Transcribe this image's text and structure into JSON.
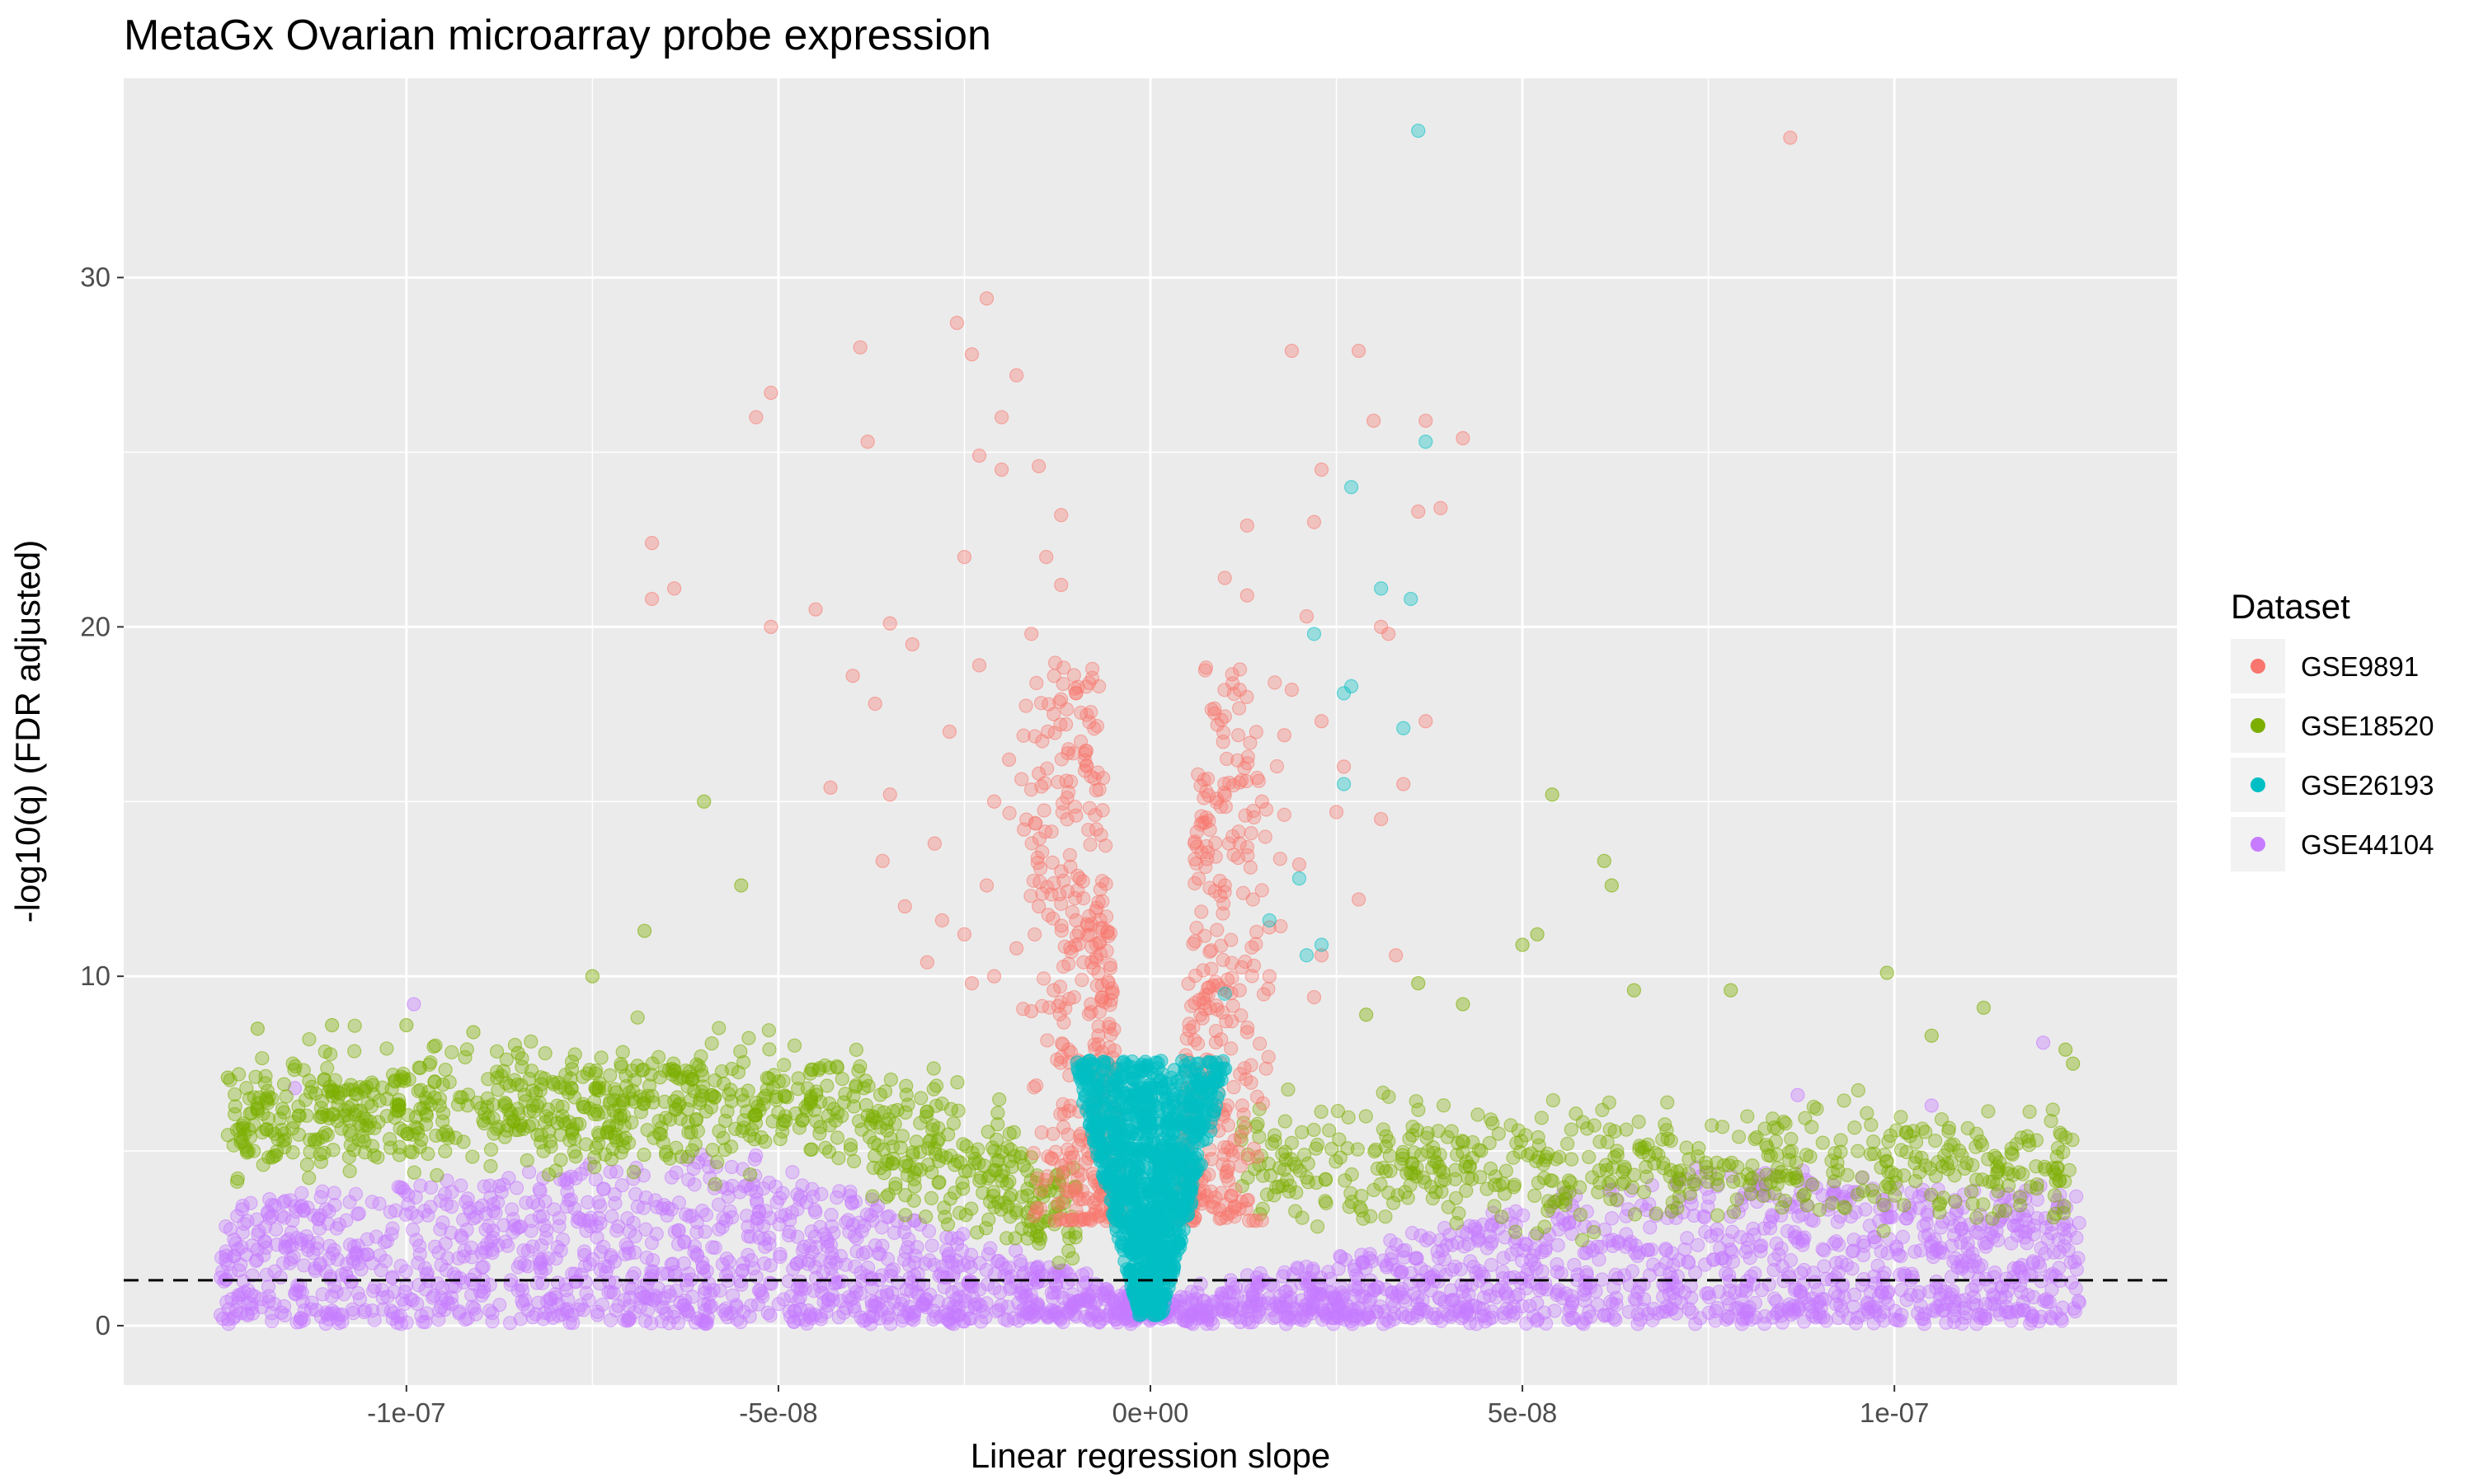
{
  "chart_data": {
    "type": "scatter",
    "title": "MetaGx Ovarian microarray probe expression",
    "xlabel": "Linear regression slope",
    "ylabel": "-log10(q) (FDR adjusted)",
    "xlim": [
      -1.38e-07,
      1.38e-07
    ],
    "ylim": [
      -1.7,
      35.7
    ],
    "x_ticks": [
      {
        "value": -1e-07,
        "label": "-1e-07"
      },
      {
        "value": -5e-08,
        "label": "-5e-08"
      },
      {
        "value": 0,
        "label": "0e+00"
      },
      {
        "value": 5e-08,
        "label": "5e-08"
      },
      {
        "value": 1e-07,
        "label": "1e-07"
      }
    ],
    "y_ticks": [
      {
        "value": 0,
        "label": "0"
      },
      {
        "value": 10,
        "label": "10"
      },
      {
        "value": 20,
        "label": "20"
      },
      {
        "value": 30,
        "label": "30"
      }
    ],
    "grid": true,
    "threshold_line": {
      "y": 1.3,
      "style": "dashed",
      "color": "#000000"
    },
    "legend": {
      "title": "Dataset",
      "position": "right"
    },
    "series": [
      {
        "name": "GSE9891",
        "color": "#F8766D",
        "points": [
          [
            8.6e-08,
            34.0
          ],
          [
            -2.2e-08,
            29.4
          ],
          [
            -2.6e-08,
            28.7
          ],
          [
            -3.9e-08,
            28.0
          ],
          [
            -2.4e-08,
            27.8
          ],
          [
            -1.8e-08,
            27.2
          ],
          [
            -5.1e-08,
            26.7
          ],
          [
            -5.3e-08,
            26.0
          ],
          [
            -2e-08,
            26.0
          ],
          [
            -3.8e-08,
            25.3
          ],
          [
            -2.3e-08,
            24.9
          ],
          [
            -2e-08,
            24.5
          ],
          [
            -1.5e-08,
            24.6
          ],
          [
            -6.7e-08,
            22.4
          ],
          [
            -6.4e-08,
            21.1
          ],
          [
            -6.7e-08,
            20.8
          ],
          [
            -4.5e-08,
            20.5
          ],
          [
            -5.1e-08,
            20.0
          ],
          [
            -3.5e-08,
            20.1
          ],
          [
            -1.2e-08,
            23.2
          ],
          [
            -1.4e-08,
            22.0
          ],
          [
            -2.5e-08,
            22.0
          ],
          [
            -1.2e-08,
            21.2
          ],
          [
            -1.6e-08,
            19.8
          ],
          [
            -3.2e-08,
            19.5
          ],
          [
            -4e-08,
            18.6
          ],
          [
            -2.3e-08,
            18.9
          ],
          [
            -1e-08,
            18.1
          ],
          [
            -1.3e-08,
            17.5
          ],
          [
            -3.7e-08,
            17.8
          ],
          [
            -2.7e-08,
            17.0
          ],
          [
            -1.1e-08,
            16.5
          ],
          [
            -1.5e-08,
            15.8
          ],
          [
            -4.3e-08,
            15.4
          ],
          [
            -3.5e-08,
            15.2
          ],
          [
            -2.1e-08,
            15.0
          ],
          [
            -1e-08,
            14.6
          ],
          [
            -1.7e-08,
            14.2
          ],
          [
            -2.9e-08,
            13.8
          ],
          [
            -3.6e-08,
            13.3
          ],
          [
            -1.2e-08,
            13.0
          ],
          [
            -2.2e-08,
            12.6
          ],
          [
            -3.3e-08,
            12.0
          ],
          [
            -1.5e-08,
            12.0
          ],
          [
            -1e-08,
            11.6
          ],
          [
            -2.5e-08,
            11.2
          ],
          [
            -1.8e-08,
            10.8
          ],
          [
            -3e-08,
            10.4
          ],
          [
            -2.1e-08,
            10.0
          ],
          [
            -1.3e-08,
            9.6
          ],
          [
            -9e-09,
            10.4
          ],
          [
            -8e-09,
            9.2
          ],
          [
            -7e-09,
            8.3
          ],
          [
            -8.5e-09,
            7.5
          ],
          [
            -6e-09,
            6.8
          ],
          [
            -5e-09,
            6.0
          ],
          [
            -1.1e-08,
            7.9
          ],
          [
            -1.6e-08,
            9.0
          ],
          [
            -2.4e-08,
            9.8
          ],
          [
            -2.8e-08,
            11.6
          ],
          [
            3.7e-08,
            25.9
          ],
          [
            4.2e-08,
            25.4
          ],
          [
            3e-08,
            25.9
          ],
          [
            2.3e-08,
            24.5
          ],
          [
            3.9e-08,
            23.4
          ],
          [
            3.6e-08,
            23.3
          ],
          [
            2.2e-08,
            23.0
          ],
          [
            1.3e-08,
            22.9
          ],
          [
            1e-08,
            21.4
          ],
          [
            1.3e-08,
            20.9
          ],
          [
            3.1e-08,
            20.0
          ],
          [
            3.2e-08,
            19.8
          ],
          [
            2.1e-08,
            20.3
          ],
          [
            1.9e-08,
            18.2
          ],
          [
            1.2e-08,
            18.2
          ],
          [
            3.7e-08,
            17.3
          ],
          [
            2.3e-08,
            17.3
          ],
          [
            9e-09,
            17.2
          ],
          [
            1.8e-08,
            16.9
          ],
          [
            2.6e-08,
            16.0
          ],
          [
            3.4e-08,
            15.5
          ],
          [
            1.5e-08,
            15.0
          ],
          [
            2.5e-08,
            14.7
          ],
          [
            3.1e-08,
            14.5
          ],
          [
            7e-09,
            14.4
          ],
          [
            1.2e-08,
            13.8
          ],
          [
            2e-08,
            13.2
          ],
          [
            1e-08,
            12.6
          ],
          [
            2.8e-08,
            12.2
          ],
          [
            1.6e-08,
            11.4
          ],
          [
            6e-09,
            11.0
          ],
          [
            2.3e-08,
            10.6
          ],
          [
            3.3e-08,
            10.6
          ],
          [
            1.2e-08,
            9.6
          ],
          [
            7e-09,
            8.8
          ],
          [
            5e-09,
            7.6
          ],
          [
            6e-09,
            6.6
          ],
          [
            9e-09,
            7.2
          ],
          [
            1.3e-08,
            8.4
          ],
          [
            2.8e-08,
            27.9
          ],
          [
            1.9e-08,
            27.9
          ],
          [
            1.6e-08,
            10.0
          ],
          [
            2.2e-08,
            9.4
          ],
          [
            -1.9e-08,
            16.2
          ],
          [
            -9.5e-09,
            12.8
          ]
        ],
        "region": {
          "y_max": 19.0,
          "y_min": 3.0,
          "x_inner": 3e-09,
          "x_outer": 1.7e-08,
          "count": 700
        }
      },
      {
        "name": "GSE18520",
        "color": "#7CAE00",
        "points": [
          [
            5.4e-08,
            15.2
          ],
          [
            -6e-08,
            15.0
          ],
          [
            6.1e-08,
            13.3
          ],
          [
            -5.5e-08,
            12.6
          ],
          [
            6.2e-08,
            12.6
          ],
          [
            5.2e-08,
            11.2
          ],
          [
            -6.8e-08,
            11.3
          ],
          [
            5e-08,
            10.9
          ],
          [
            -7.5e-08,
            10.0
          ],
          [
            9.9e-08,
            10.1
          ],
          [
            -1e-07,
            8.6
          ],
          [
            -1.1e-07,
            8.6
          ],
          [
            -1.2e-07,
            8.5
          ],
          [
            1.05e-07,
            8.3
          ],
          [
            1.12e-07,
            9.1
          ],
          [
            -1.24e-07,
            7.1
          ],
          [
            7.8e-08,
            9.6
          ],
          [
            1.23e-07,
            7.9
          ],
          [
            1.24e-07,
            7.5
          ],
          [
            6.5e-08,
            9.6
          ],
          [
            -9.1e-08,
            8.4
          ],
          [
            -8.5e-08,
            7.8
          ],
          [
            4.2e-08,
            9.2
          ],
          [
            3.6e-08,
            9.8
          ],
          [
            2.9e-08,
            8.9
          ]
        ],
        "left_region": {
          "x_min": -1.24e-07,
          "x_max": -1e-08,
          "count": 900
        },
        "right_region": {
          "x_min": 1.2e-08,
          "x_max": 1.24e-07,
          "count": 550
        }
      },
      {
        "name": "GSE26193",
        "color": "#00BFC4",
        "points": [
          [
            3.6e-08,
            34.2
          ],
          [
            3.7e-08,
            25.3
          ],
          [
            2.7e-08,
            24.0
          ],
          [
            3.1e-08,
            21.1
          ],
          [
            3.5e-08,
            20.8
          ],
          [
            2.2e-08,
            19.8
          ],
          [
            2.7e-08,
            18.3
          ],
          [
            2.6e-08,
            18.1
          ],
          [
            3.4e-08,
            17.1
          ],
          [
            2.6e-08,
            15.5
          ],
          [
            2e-08,
            12.8
          ],
          [
            1.6e-08,
            11.6
          ],
          [
            2.3e-08,
            10.9
          ],
          [
            2.1e-08,
            10.6
          ],
          [
            1e-08,
            9.5
          ]
        ],
        "region": {
          "y_max": 7.3,
          "x_outer": 1.2e-08,
          "count": 1100
        }
      },
      {
        "name": "GSE44104",
        "color": "#C77CFF",
        "points": [
          [
            -9.9e-08,
            9.2
          ],
          [
            1.2e-07,
            8.1
          ],
          [
            -1.15e-07,
            6.8
          ],
          [
            1.05e-07,
            6.3
          ],
          [
            8.7e-08,
            6.6
          ]
        ],
        "region": {
          "x_min": -1.25e-07,
          "x_max": 1.25e-07,
          "count": 2600
        }
      }
    ]
  }
}
